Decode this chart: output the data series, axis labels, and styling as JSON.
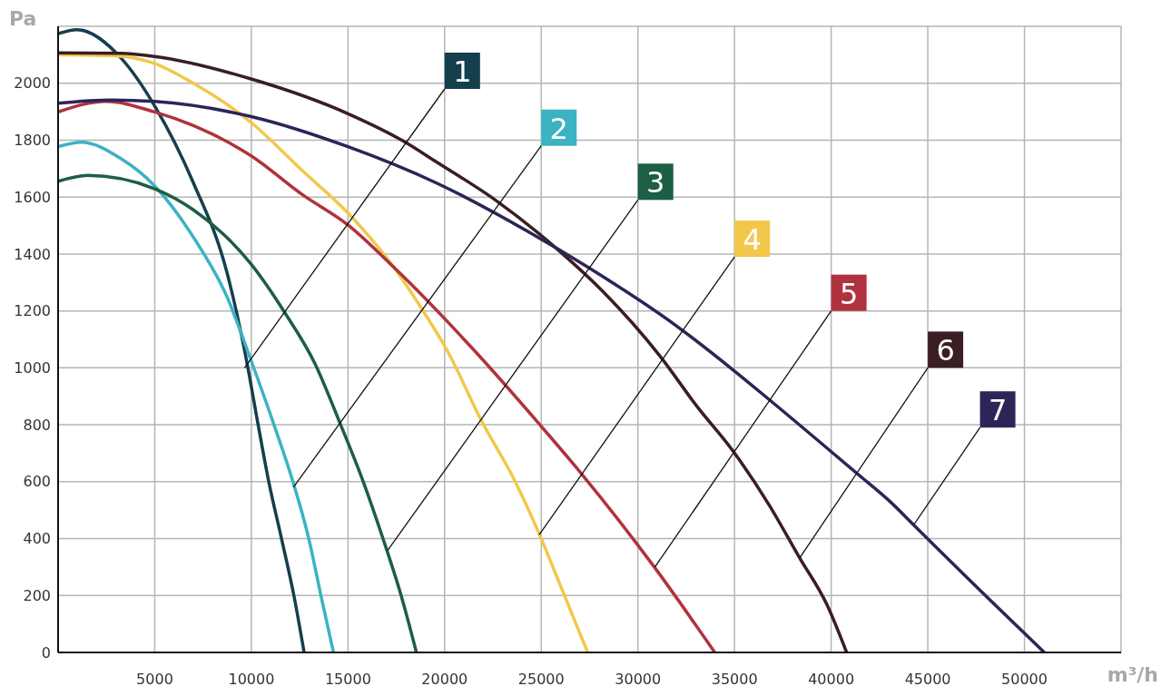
{
  "chart_data": {
    "type": "line",
    "xlabel": "m³/h",
    "ylabel": "Pa",
    "xlim": [
      0,
      55000
    ],
    "ylim": [
      0,
      2200
    ],
    "xticks": [
      {
        "value": 0,
        "label": null
      },
      5000,
      10000,
      15000,
      20000,
      25000,
      30000,
      35000,
      40000,
      45000,
      50000,
      {
        "value": 55000,
        "label": null
      }
    ],
    "yticks": [
      0,
      200,
      400,
      600,
      800,
      1000,
      1200,
      1400,
      1600,
      1800,
      2000,
      {
        "value": 2200,
        "label": null
      }
    ],
    "grid": true,
    "series": [
      {
        "color": "#143f4e",
        "x": [
          0,
          980,
          3250,
          5000,
          7000,
          8750,
          9690,
          10350,
          10900,
          11560,
          12200,
          12730
        ],
        "values": [
          2174,
          2188,
          2089,
          1920,
          1650,
          1332,
          1047,
          800,
          600,
          400,
          200,
          0
        ]
      },
      {
        "color": "#3bb3c3",
        "x": [
          0,
          1210,
          3250,
          5000,
          7000,
          8750,
          9990,
          11170,
          12150,
          12970,
          13600,
          14250
        ],
        "values": [
          1777,
          1793,
          1735,
          1639,
          1459,
          1248,
          1025,
          800,
          600,
          400,
          200,
          0
        ]
      },
      {
        "color": "#1d5e44",
        "x": [
          0,
          1530,
          5000,
          7000,
          9990,
          11720,
          13290,
          14620,
          15790,
          16810,
          17750,
          18540
        ],
        "values": [
          1655,
          1676,
          1629,
          1555,
          1364,
          1195,
          1015,
          800,
          600,
          400,
          200,
          0
        ]
      },
      {
        "color": "#f2c84b",
        "x": [
          0,
          3250,
          5000,
          7000,
          9990,
          12650,
          15000,
          17360,
          18930,
          20100,
          21910,
          23640,
          24890,
          26140,
          27400
        ],
        "values": [
          2100,
          2095,
          2069,
          2000,
          1862,
          1692,
          1544,
          1354,
          1195,
          1065,
          814,
          602,
          417,
          210,
          0
        ]
      },
      {
        "color": "#b0323e",
        "x": [
          0,
          2470,
          5000,
          7000,
          9990,
          12650,
          15000,
          17360,
          21440,
          24890,
          27080,
          30850,
          33980
        ],
        "values": [
          1899,
          1936,
          1899,
          1851,
          1745,
          1608,
          1502,
          1354,
          1068,
          803,
          628,
          300,
          0
        ]
      },
      {
        "color": "#3a1e22",
        "x": [
          0,
          3250,
          5000,
          9990,
          15000,
          17830,
          19560,
          22700,
          25830,
          28180,
          31160,
          33040,
          34920,
          36800,
          38370,
          39780,
          40800
        ],
        "values": [
          2107,
          2105,
          2094,
          2015,
          1893,
          1798,
          1724,
          1586,
          1417,
          1269,
          1040,
          866,
          708,
          517,
          332,
          168,
          0
        ]
      },
      {
        "color": "#2c2557",
        "x": [
          0,
          2780,
          5000,
          9990,
          15000,
          19560,
          24260,
          27400,
          32100,
          34920,
          36800,
          41350,
          43080,
          44270,
          46920,
          51030
        ],
        "values": [
          1930,
          1941,
          1936,
          1883,
          1777,
          1650,
          1481,
          1354,
          1142,
          993,
          888,
          628,
          528,
          448,
          270,
          0
        ]
      }
    ],
    "annotations": [
      {
        "text": "1",
        "x": 9650,
        "y": 1000
      },
      {
        "text": "2",
        "x": 12180,
        "y": 581
      },
      {
        "text": "3",
        "x": 17050,
        "y": 358
      },
      {
        "text": "4",
        "x": 24890,
        "y": 413
      },
      {
        "text": "5",
        "x": 30880,
        "y": 300
      },
      {
        "text": "6",
        "x": 38370,
        "y": 332
      },
      {
        "text": "7",
        "x": 44270,
        "y": 448
      }
    ]
  }
}
